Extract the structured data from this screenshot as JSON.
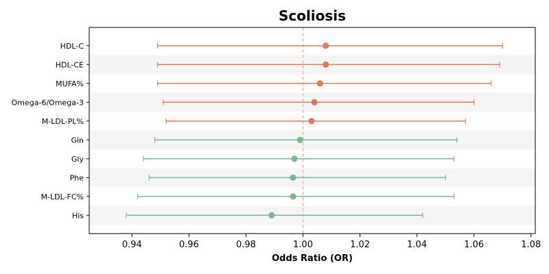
{
  "chart_data": {
    "type": "forest",
    "title": "Scoliosis",
    "xlabel": "Odds Ratio (OR)",
    "ylabel": "",
    "xlim": [
      0.925,
      1.0815
    ],
    "xticks": [
      "0.94",
      "0.96",
      "0.98",
      "1.00",
      "1.02",
      "1.04",
      "1.06",
      "1.08"
    ],
    "reference_line": 1.0,
    "reference_color": "#f5bd7a",
    "band_color": "#f5f5f5",
    "grid": false,
    "series": [
      {
        "color": "#dd7a5e",
        "items": [
          {
            "label": "HDL-C",
            "or": 1.008,
            "lower": 0.949,
            "upper": 1.07
          },
          {
            "label": "HDL-CE",
            "or": 1.008,
            "lower": 0.949,
            "upper": 1.069
          },
          {
            "label": "MUFA%",
            "or": 1.006,
            "lower": 0.949,
            "upper": 1.066
          },
          {
            "label": "Omega-6/Omega-3",
            "or": 1.004,
            "lower": 0.951,
            "upper": 1.06
          },
          {
            "label": "M-LDL-PL%",
            "or": 1.003,
            "lower": 0.952,
            "upper": 1.057
          }
        ]
      },
      {
        "color": "#7fb59b",
        "items": [
          {
            "label": "Gln",
            "or": 0.999,
            "lower": 0.948,
            "upper": 1.054
          },
          {
            "label": "Gly",
            "or": 0.997,
            "lower": 0.944,
            "upper": 1.053
          },
          {
            "label": "Phe",
            "or": 0.9965,
            "lower": 0.946,
            "upper": 1.05
          },
          {
            "label": "M-LDL-FC%",
            "or": 0.9965,
            "lower": 0.942,
            "upper": 1.053
          },
          {
            "label": "His",
            "or": 0.989,
            "lower": 0.938,
            "upper": 1.042
          }
        ]
      }
    ]
  }
}
